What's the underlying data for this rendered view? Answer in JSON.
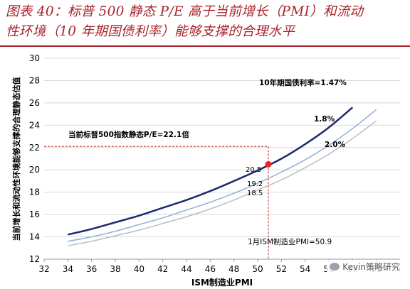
{
  "header": {
    "title_line1": "图表 40：标普 500 静态 P/E 高于当前增长（PMI）和流动",
    "title_line2": "性环境（10 年期国债利率）能够支撑的合理水平"
  },
  "watermark": {
    "text": "Kevin策略研究"
  },
  "chart_data": {
    "type": "line",
    "xlabel": "ISM制造业PMI",
    "ylabel": "当前增长和流动性环境能够支撑的合理静态估值",
    "xlim": [
      32,
      62
    ],
    "ylim": [
      12,
      30
    ],
    "xticks": [
      32,
      34,
      36,
      38,
      40,
      42,
      44,
      46,
      48,
      50,
      52,
      54,
      56,
      58,
      60
    ],
    "yticks": [
      12,
      14,
      16,
      18,
      20,
      22,
      24,
      26,
      28,
      30
    ],
    "series": [
      {
        "name": "10年期国债利率=1.47%",
        "color": "#1b2a6e",
        "width": 2.5,
        "x": [
          34,
          36,
          38,
          40,
          42,
          44,
          46,
          48,
          50,
          52,
          54,
          56,
          58
        ],
        "y": [
          14.2,
          14.7,
          15.3,
          15.9,
          16.6,
          17.3,
          18.1,
          19.0,
          19.95,
          21.0,
          22.3,
          23.8,
          25.6
        ]
      },
      {
        "name": "1.8%",
        "color": "#8fb0d6",
        "width": 1.5,
        "x": [
          34,
          36,
          38,
          40,
          42,
          44,
          46,
          48,
          50,
          52,
          54,
          56,
          58,
          60
        ],
        "y": [
          13.6,
          14.0,
          14.5,
          15.1,
          15.7,
          16.4,
          17.1,
          17.9,
          18.8,
          19.8,
          20.9,
          22.2,
          23.7,
          25.4
        ]
      },
      {
        "name": "2.0%",
        "color": "#bdbdbd",
        "width": 1.5,
        "x": [
          34,
          36,
          38,
          40,
          42,
          44,
          46,
          48,
          50,
          52,
          54,
          56,
          58,
          60
        ],
        "y": [
          13.2,
          13.6,
          14.1,
          14.6,
          15.2,
          15.8,
          16.5,
          17.3,
          18.2,
          19.1,
          20.2,
          21.4,
          22.8,
          24.4
        ]
      }
    ],
    "annotations": {
      "pe_line_label": "当前标普500指数静态P/E=22.1倍",
      "pe_value": 22.1,
      "pmi_line_label": "1月ISM制造业PMI=50.9",
      "pmi_value": 50.9,
      "point_labels": [
        "20.5",
        "19.2",
        "18.5"
      ],
      "point_values": [
        20.5,
        19.2,
        18.5
      ],
      "series_label_1": "10年期国债利率=1.47%",
      "series_label_2": "1.8%",
      "series_label_3": "2.0%",
      "marker_color": "#e8262b",
      "ref_line_color": "#c0282e"
    }
  }
}
